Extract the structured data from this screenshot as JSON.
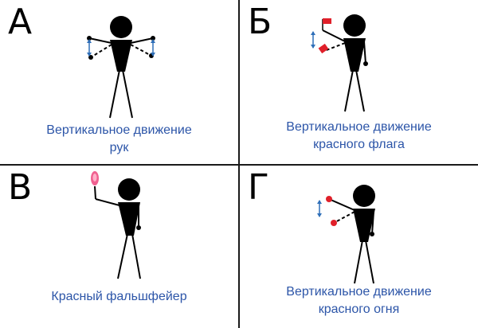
{
  "panels": [
    {
      "id": "a",
      "letter": "А",
      "caption_lines": [
        "Вертикальное движение",
        "рук"
      ]
    },
    {
      "id": "b",
      "letter": "Б",
      "caption_lines": [
        "Вертикальное движение",
        "красного флага"
      ]
    },
    {
      "id": "v",
      "letter": "В",
      "caption_lines": [
        "Красный фальшфейер"
      ]
    },
    {
      "id": "g",
      "letter": "Г",
      "caption_lines": [
        "Вертикальное движение",
        "красного огня"
      ]
    }
  ],
  "colors": {
    "caption": "#2c55a8",
    "figure": "#000000",
    "arrow": "#2f6fb8",
    "signal_red": "#e0202a",
    "flare_pink": "#f06090",
    "grid_line": "#1a1a1a"
  },
  "icons": {
    "arrows_a": "vertical-double-arrow-icon",
    "flag_b": "red-flag-icon",
    "flare_v": "red-flare-icon",
    "light_g": "red-light-icon"
  }
}
